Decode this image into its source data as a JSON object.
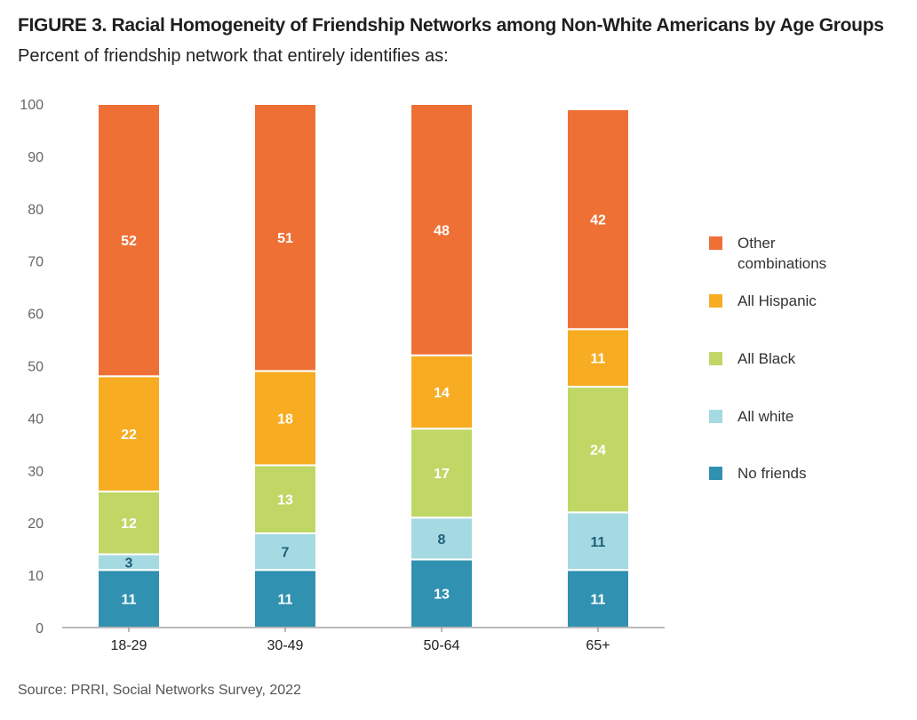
{
  "title": "FIGURE 3.  Racial Homogeneity of Friendship Networks among Non-White Americans by Age Groups",
  "subtitle": "Percent of friendship network that entirely identifies as:",
  "source": "Source: PRRI, Social Networks Survey, 2022",
  "chart_data": {
    "type": "bar",
    "stacked": true,
    "categories": [
      "18-29",
      "30-49",
      "50-64",
      "65+"
    ],
    "ylim": [
      0,
      100
    ],
    "yticks": [
      0,
      10,
      20,
      30,
      40,
      50,
      60,
      70,
      80,
      90,
      100
    ],
    "grid": false,
    "legend_position": "right",
    "series": [
      {
        "name": "No friends",
        "color": "#3191b0",
        "label_color": "#ffffff",
        "values": [
          11,
          11,
          13,
          11
        ]
      },
      {
        "name": "All white",
        "color": "#a5dae3",
        "label_color": "#1d5f7a",
        "values": [
          3,
          7,
          8,
          11
        ]
      },
      {
        "name": "All Black",
        "color": "#c0d766",
        "label_color": "#ffffff",
        "values": [
          12,
          13,
          17,
          24
        ]
      },
      {
        "name": "All Hispanic",
        "color": "#f7ac22",
        "label_color": "#ffffff",
        "values": [
          22,
          18,
          14,
          11
        ]
      },
      {
        "name": "Other combinations",
        "color": "#ee7035",
        "label_color": "#ffffff",
        "values": [
          52,
          51,
          48,
          42
        ]
      }
    ]
  },
  "legend": [
    {
      "label": "Other combinations",
      "color": "#ee7035"
    },
    {
      "label": "All Hispanic",
      "color": "#f7ac22"
    },
    {
      "label": "All Black",
      "color": "#c0d766"
    },
    {
      "label": "All white",
      "color": "#a5dae3"
    },
    {
      "label": "No friends",
      "color": "#3191b0"
    }
  ]
}
